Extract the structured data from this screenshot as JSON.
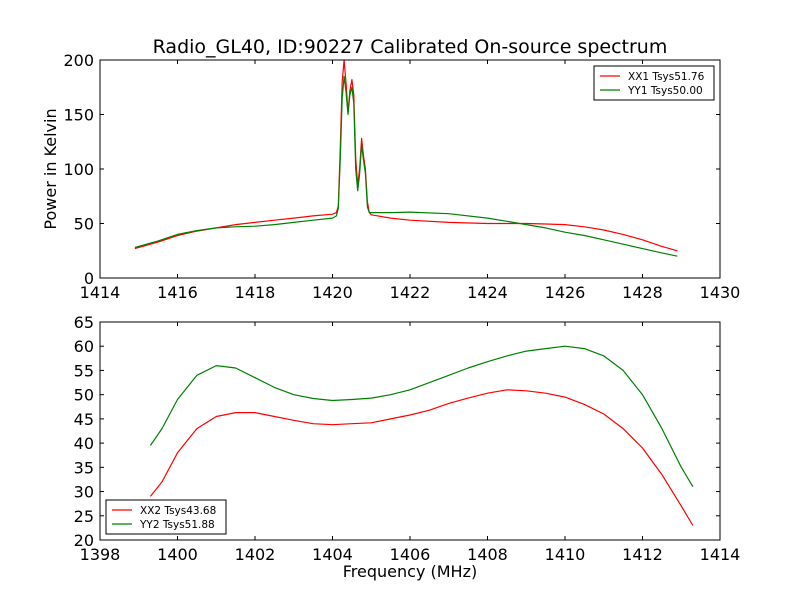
{
  "chart_data": [
    {
      "type": "line",
      "title": "Radio_GL40, ID:90227 Calibrated On-source spectrum",
      "xlabel": "",
      "ylabel": "Power in Kelvin",
      "xlim": [
        1414,
        1430
      ],
      "ylim": [
        0,
        200
      ],
      "xticks": [
        1414,
        1416,
        1418,
        1420,
        1422,
        1424,
        1426,
        1428,
        1430
      ],
      "yticks": [
        0,
        50,
        100,
        150,
        200
      ],
      "grid": false,
      "legend_position": "top-right",
      "series": [
        {
          "name": "XX1 Tsys51.76",
          "color": "#ff0000",
          "points": [
            [
              1414.9,
              27
            ],
            [
              1415.5,
              33
            ],
            [
              1416,
              39
            ],
            [
              1416.5,
              43
            ],
            [
              1417,
              46
            ],
            [
              1417.5,
              49
            ],
            [
              1418,
              51
            ],
            [
              1418.5,
              53
            ],
            [
              1419,
              55
            ],
            [
              1419.5,
              57
            ],
            [
              1420,
              58.5
            ],
            [
              1420.1,
              60
            ],
            [
              1420.15,
              66
            ],
            [
              1420.2,
              120
            ],
            [
              1420.25,
              180
            ],
            [
              1420.3,
              200
            ],
            [
              1420.35,
              178
            ],
            [
              1420.4,
              152
            ],
            [
              1420.45,
              172
            ],
            [
              1420.5,
              182
            ],
            [
              1420.55,
              168
            ],
            [
              1420.6,
              110
            ],
            [
              1420.65,
              85
            ],
            [
              1420.7,
              100
            ],
            [
              1420.75,
              128
            ],
            [
              1420.8,
              112
            ],
            [
              1420.85,
              100
            ],
            [
              1420.9,
              70
            ],
            [
              1420.95,
              60
            ],
            [
              1421,
              58
            ],
            [
              1421.5,
              55
            ],
            [
              1422,
              53
            ],
            [
              1423,
              51
            ],
            [
              1424,
              50
            ],
            [
              1425,
              50
            ],
            [
              1425.5,
              49.5
            ],
            [
              1426,
              49
            ],
            [
              1426.5,
              47
            ],
            [
              1427,
              44
            ],
            [
              1427.5,
              40
            ],
            [
              1428,
              35
            ],
            [
              1428.5,
              29
            ],
            [
              1428.9,
              25
            ]
          ]
        },
        {
          "name": "YY1 Tsys50.00",
          "color": "#008000",
          "points": [
            [
              1414.9,
              28
            ],
            [
              1415.5,
              34
            ],
            [
              1416,
              40
            ],
            [
              1416.5,
              43.5
            ],
            [
              1417,
              46
            ],
            [
              1417.5,
              47
            ],
            [
              1418,
              47.5
            ],
            [
              1418.5,
              49
            ],
            [
              1419,
              51
            ],
            [
              1419.5,
              53
            ],
            [
              1420,
              55
            ],
            [
              1420.1,
              57
            ],
            [
              1420.15,
              64
            ],
            [
              1420.2,
              110
            ],
            [
              1420.25,
              165
            ],
            [
              1420.3,
              185
            ],
            [
              1420.35,
              170
            ],
            [
              1420.4,
              150
            ],
            [
              1420.45,
              168
            ],
            [
              1420.5,
              175
            ],
            [
              1420.55,
              160
            ],
            [
              1420.6,
              100
            ],
            [
              1420.65,
              80
            ],
            [
              1420.7,
              95
            ],
            [
              1420.75,
              122
            ],
            [
              1420.8,
              108
            ],
            [
              1420.85,
              96
            ],
            [
              1420.9,
              65
            ],
            [
              1420.95,
              60
            ],
            [
              1421,
              60
            ],
            [
              1421.5,
              60
            ],
            [
              1422,
              60.5
            ],
            [
              1423,
              59
            ],
            [
              1424,
              55
            ],
            [
              1424.5,
              52
            ],
            [
              1425,
              49
            ],
            [
              1425.5,
              46
            ],
            [
              1426,
              42
            ],
            [
              1426.5,
              39
            ],
            [
              1427,
              35
            ],
            [
              1427.5,
              31
            ],
            [
              1428,
              27
            ],
            [
              1428.5,
              23
            ],
            [
              1428.9,
              20
            ]
          ]
        }
      ]
    },
    {
      "type": "line",
      "title": "",
      "xlabel": "Frequency (MHz)",
      "ylabel": "",
      "xlim": [
        1398,
        1414
      ],
      "ylim": [
        20,
        65
      ],
      "xticks": [
        1398,
        1400,
        1402,
        1404,
        1406,
        1408,
        1410,
        1412,
        1414
      ],
      "yticks": [
        20,
        25,
        30,
        35,
        40,
        45,
        50,
        55,
        60,
        65
      ],
      "grid": false,
      "legend_position": "bottom-left",
      "series": [
        {
          "name": "XX2 Tsys43.68",
          "color": "#ff0000",
          "points": [
            [
              1399.3,
              29
            ],
            [
              1399.6,
              32
            ],
            [
              1400,
              38
            ],
            [
              1400.5,
              43
            ],
            [
              1401,
              45.5
            ],
            [
              1401.5,
              46.3
            ],
            [
              1402,
              46.3
            ],
            [
              1402.5,
              45.5
            ],
            [
              1403,
              44.7
            ],
            [
              1403.5,
              44
            ],
            [
              1404,
              43.8
            ],
            [
              1404.5,
              44
            ],
            [
              1405,
              44.2
            ],
            [
              1405.5,
              45
            ],
            [
              1406,
              45.8
            ],
            [
              1406.5,
              46.8
            ],
            [
              1407,
              48.2
            ],
            [
              1407.5,
              49.3
            ],
            [
              1408,
              50.3
            ],
            [
              1408.5,
              51
            ],
            [
              1409,
              50.8
            ],
            [
              1409.5,
              50.3
            ],
            [
              1410,
              49.5
            ],
            [
              1410.5,
              48
            ],
            [
              1411,
              46
            ],
            [
              1411.5,
              43
            ],
            [
              1412,
              39
            ],
            [
              1412.5,
              33.5
            ],
            [
              1413,
              27
            ],
            [
              1413.3,
              23
            ]
          ]
        },
        {
          "name": "YY2 Tsys51.88",
          "color": "#008000",
          "points": [
            [
              1399.3,
              39.5
            ],
            [
              1399.6,
              43
            ],
            [
              1400,
              49
            ],
            [
              1400.5,
              54
            ],
            [
              1401,
              56
            ],
            [
              1401.5,
              55.5
            ],
            [
              1402,
              53.5
            ],
            [
              1402.5,
              51.5
            ],
            [
              1403,
              50
            ],
            [
              1403.5,
              49.2
            ],
            [
              1404,
              48.8
            ],
            [
              1404.5,
              49
            ],
            [
              1405,
              49.3
            ],
            [
              1405.5,
              50
            ],
            [
              1406,
              51
            ],
            [
              1406.5,
              52.5
            ],
            [
              1407,
              54
            ],
            [
              1407.5,
              55.5
            ],
            [
              1408,
              56.8
            ],
            [
              1408.5,
              58
            ],
            [
              1409,
              59
            ],
            [
              1409.5,
              59.5
            ],
            [
              1410,
              60
            ],
            [
              1410.5,
              59.5
            ],
            [
              1411,
              58
            ],
            [
              1411.5,
              55
            ],
            [
              1412,
              50
            ],
            [
              1412.5,
              43
            ],
            [
              1413,
              35
            ],
            [
              1413.3,
              31
            ]
          ]
        }
      ]
    }
  ]
}
